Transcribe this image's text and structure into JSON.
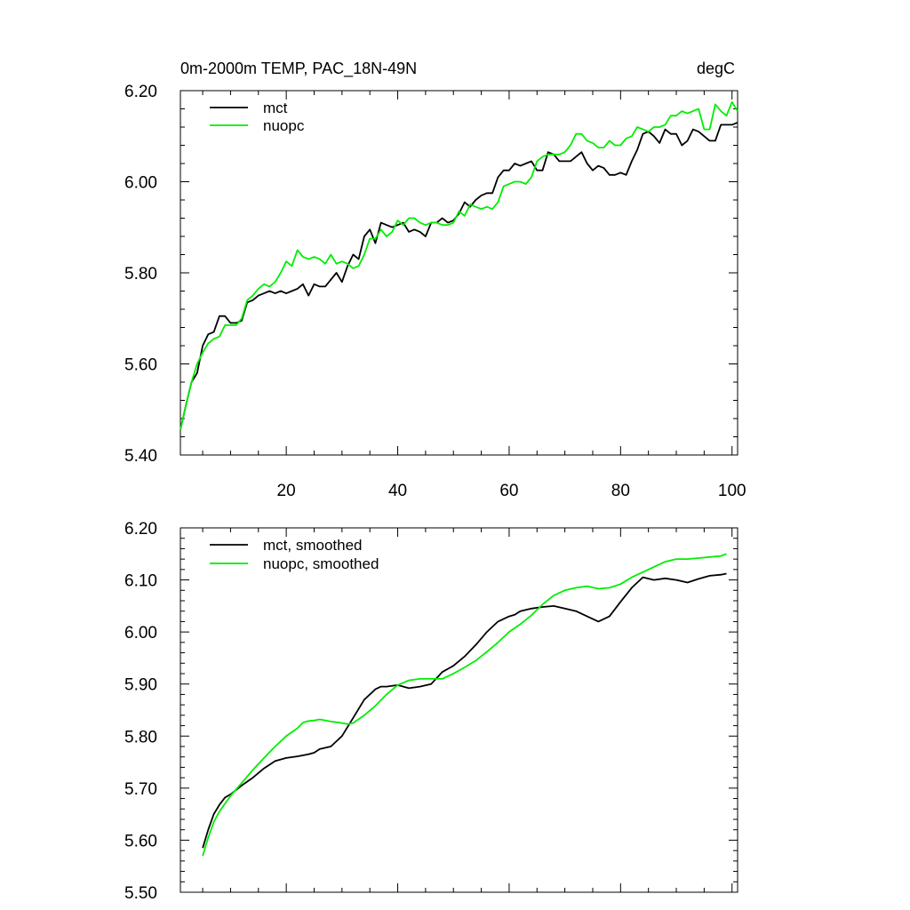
{
  "figure": {
    "title_left": "0m-2000m TEMP, PAC_18N-49N",
    "title_right": "degC"
  },
  "chart_data": [
    {
      "type": "line",
      "xlim": [
        1,
        101
      ],
      "ylim": [
        5.4,
        6.2
      ],
      "xticks": [
        20,
        40,
        60,
        80,
        100
      ],
      "xtick_labels": [
        "20",
        "40",
        "60",
        "80",
        "100"
      ],
      "yticks": [
        5.4,
        5.6,
        5.8,
        6.0,
        6.2
      ],
      "ytick_labels": [
        "5.40",
        "5.60",
        "5.80",
        "6.00",
        "6.20"
      ],
      "legend_position": "top-left",
      "series": [
        {
          "name": "mct",
          "color": "#000000",
          "x": [
            1,
            2,
            3,
            4,
            5,
            6,
            7,
            8,
            9,
            10,
            11,
            12,
            13,
            14,
            15,
            16,
            17,
            18,
            19,
            20,
            21,
            22,
            23,
            24,
            25,
            26,
            27,
            28,
            29,
            30,
            31,
            32,
            33,
            34,
            35,
            36,
            37,
            38,
            39,
            40,
            41,
            42,
            43,
            44,
            45,
            46,
            47,
            48,
            49,
            50,
            51,
            52,
            53,
            54,
            55,
            56,
            57,
            58,
            59,
            60,
            61,
            62,
            63,
            64,
            65,
            66,
            67,
            68,
            69,
            70,
            71,
            72,
            73,
            74,
            75,
            76,
            77,
            78,
            79,
            80,
            81,
            82,
            83,
            84,
            85,
            86,
            87,
            88,
            89,
            90,
            91,
            92,
            93,
            94,
            95,
            96,
            97,
            98,
            99,
            100,
            101
          ],
          "values": [
            5.455,
            5.51,
            5.56,
            5.58,
            5.64,
            5.665,
            5.67,
            5.705,
            5.705,
            5.69,
            5.69,
            5.695,
            5.735,
            5.74,
            5.75,
            5.755,
            5.76,
            5.755,
            5.76,
            5.755,
            5.76,
            5.765,
            5.775,
            5.75,
            5.775,
            5.77,
            5.77,
            5.785,
            5.8,
            5.78,
            5.815,
            5.84,
            5.83,
            5.88,
            5.895,
            5.865,
            5.91,
            5.905,
            5.9,
            5.905,
            5.91,
            5.89,
            5.895,
            5.89,
            5.88,
            5.91,
            5.91,
            5.92,
            5.91,
            5.915,
            5.93,
            5.955,
            5.945,
            5.96,
            5.97,
            5.975,
            5.975,
            6.01,
            6.025,
            6.025,
            6.04,
            6.035,
            6.04,
            6.045,
            6.025,
            6.025,
            6.065,
            6.06,
            6.045,
            6.045,
            6.045,
            6.055,
            6.065,
            6.04,
            6.025,
            6.035,
            6.03,
            6.015,
            6.015,
            6.02,
            6.015,
            6.045,
            6.07,
            6.105,
            6.11,
            6.1,
            6.085,
            6.115,
            6.105,
            6.105,
            6.08,
            6.09,
            6.115,
            6.11,
            6.1,
            6.09,
            6.09,
            6.125,
            6.125,
            6.125,
            6.13
          ]
        },
        {
          "name": "nuopc",
          "color": "#00ee00",
          "x": [
            1,
            2,
            3,
            4,
            5,
            6,
            7,
            8,
            9,
            10,
            11,
            12,
            13,
            14,
            15,
            16,
            17,
            18,
            19,
            20,
            21,
            22,
            23,
            24,
            25,
            26,
            27,
            28,
            29,
            30,
            31,
            32,
            33,
            34,
            35,
            36,
            37,
            38,
            39,
            40,
            41,
            42,
            43,
            44,
            45,
            46,
            47,
            48,
            49,
            50,
            51,
            52,
            53,
            54,
            55,
            56,
            57,
            58,
            59,
            60,
            61,
            62,
            63,
            64,
            65,
            66,
            67,
            68,
            69,
            70,
            71,
            72,
            73,
            74,
            75,
            76,
            77,
            78,
            79,
            80,
            81,
            82,
            83,
            84,
            85,
            86,
            87,
            88,
            89,
            90,
            91,
            92,
            93,
            94,
            95,
            96,
            97,
            98,
            99,
            100,
            101
          ],
          "values": [
            5.455,
            5.51,
            5.56,
            5.6,
            5.625,
            5.645,
            5.655,
            5.66,
            5.685,
            5.685,
            5.685,
            5.7,
            5.74,
            5.75,
            5.765,
            5.775,
            5.77,
            5.78,
            5.8,
            5.825,
            5.815,
            5.85,
            5.835,
            5.83,
            5.835,
            5.83,
            5.82,
            5.84,
            5.82,
            5.825,
            5.82,
            5.81,
            5.815,
            5.84,
            5.875,
            5.875,
            5.895,
            5.88,
            5.89,
            5.915,
            5.905,
            5.92,
            5.92,
            5.91,
            5.905,
            5.91,
            5.91,
            5.905,
            5.905,
            5.91,
            5.935,
            5.925,
            5.95,
            5.945,
            5.94,
            5.945,
            5.94,
            5.955,
            5.99,
            5.995,
            6.0,
            6.0,
            5.995,
            6.01,
            6.045,
            6.055,
            6.06,
            6.06,
            6.06,
            6.065,
            6.08,
            6.105,
            6.105,
            6.09,
            6.085,
            6.075,
            6.075,
            6.09,
            6.08,
            6.08,
            6.095,
            6.1,
            6.12,
            6.115,
            6.11,
            6.12,
            6.12,
            6.125,
            6.145,
            6.145,
            6.155,
            6.15,
            6.155,
            6.16,
            6.115,
            6.115,
            6.17,
            6.155,
            6.145,
            6.175,
            6.155
          ]
        }
      ]
    },
    {
      "type": "line",
      "xlim": [
        1,
        101
      ],
      "ylim": [
        5.5,
        6.2
      ],
      "xticks": [
        20,
        40,
        60,
        80,
        100
      ],
      "xtick_labels": [],
      "yticks": [
        5.5,
        5.6,
        5.7,
        5.8,
        5.9,
        6.0,
        6.1,
        6.2
      ],
      "ytick_labels": [
        "5.50",
        "5.60",
        "5.70",
        "5.80",
        "5.90",
        "6.00",
        "6.10",
        "6.20"
      ],
      "legend_position": "top-left",
      "series": [
        {
          "name": "mct, smoothed",
          "color": "#000000",
          "x": [
            5,
            6,
            7,
            8,
            9,
            10,
            12,
            14,
            16,
            18,
            20,
            22,
            24,
            25,
            26,
            28,
            30,
            32,
            34,
            36,
            37,
            38,
            40,
            42,
            44,
            46,
            48,
            50,
            52,
            54,
            56,
            58,
            60,
            61,
            62,
            64,
            66,
            68,
            70,
            72,
            74,
            76,
            78,
            80,
            82,
            84,
            86,
            88,
            90,
            92,
            94,
            96,
            98,
            99
          ],
          "values": [
            5.585,
            5.62,
            5.65,
            5.668,
            5.682,
            5.688,
            5.705,
            5.72,
            5.738,
            5.752,
            5.758,
            5.761,
            5.765,
            5.768,
            5.775,
            5.78,
            5.8,
            5.835,
            5.87,
            5.89,
            5.895,
            5.895,
            5.898,
            5.892,
            5.895,
            5.9,
            5.923,
            5.935,
            5.953,
            5.975,
            6.0,
            6.02,
            6.03,
            6.033,
            6.04,
            6.045,
            6.048,
            6.05,
            6.045,
            6.04,
            6.03,
            6.02,
            6.03,
            6.058,
            6.085,
            6.105,
            6.1,
            6.103,
            6.1,
            6.095,
            6.102,
            6.108,
            6.11,
            6.112
          ]
        },
        {
          "name": "nuopc, smoothed",
          "color": "#00ee00",
          "x": [
            5,
            6,
            7,
            8,
            10,
            12,
            14,
            16,
            18,
            20,
            22,
            23,
            24,
            25,
            26,
            28,
            30,
            31,
            32,
            34,
            36,
            38,
            40,
            42,
            44,
            46,
            48,
            50,
            52,
            54,
            56,
            58,
            60,
            62,
            64,
            66,
            68,
            70,
            72,
            74,
            76,
            78,
            80,
            82,
            84,
            86,
            88,
            90,
            92,
            94,
            96,
            98,
            99
          ],
          "values": [
            5.57,
            5.605,
            5.635,
            5.655,
            5.685,
            5.71,
            5.735,
            5.758,
            5.78,
            5.8,
            5.815,
            5.826,
            5.829,
            5.83,
            5.832,
            5.828,
            5.825,
            5.823,
            5.825,
            5.84,
            5.858,
            5.88,
            5.898,
            5.907,
            5.91,
            5.91,
            5.91,
            5.92,
            5.932,
            5.945,
            5.962,
            5.98,
            6.0,
            6.015,
            6.032,
            6.053,
            6.07,
            6.08,
            6.085,
            6.088,
            6.083,
            6.085,
            6.092,
            6.105,
            6.115,
            6.125,
            6.135,
            6.14,
            6.14,
            6.142,
            6.144,
            6.146,
            6.15
          ]
        }
      ]
    }
  ]
}
